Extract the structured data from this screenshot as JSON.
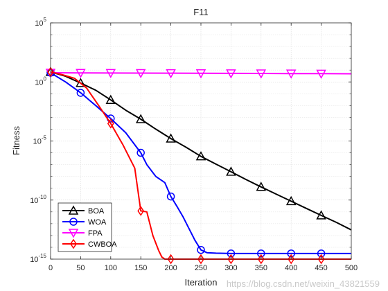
{
  "chart_data": {
    "type": "line",
    "title": "F11",
    "xlabel": "Iteration",
    "ylabel": "Fitness",
    "xlim": [
      0,
      500
    ],
    "ylim": [
      1e-15,
      100000
    ],
    "yscale": "log",
    "x_ticks": [
      "0",
      "50",
      "100",
      "150",
      "200",
      "250",
      "300",
      "350",
      "400",
      "450",
      "500"
    ],
    "y_ticks": [
      {
        "base": "10",
        "exp": "-15"
      },
      {
        "base": "10",
        "exp": "-10"
      },
      {
        "base": "10",
        "exp": "-5"
      },
      {
        "base": "10",
        "exp": "0"
      },
      {
        "base": "10",
        "exp": "5"
      }
    ],
    "grid": true,
    "legend_position": "bottom-left",
    "series": [
      {
        "name": "BOA",
        "color": "#000000",
        "marker": "triangle-up",
        "x": [
          0,
          10,
          25,
          50,
          75,
          100,
          125,
          150,
          175,
          200,
          225,
          250,
          275,
          300,
          325,
          350,
          375,
          400,
          425,
          450,
          475,
          500
        ],
        "y": [
          7,
          5,
          3,
          0.8,
          0.2,
          0.03,
          0.004,
          0.0007,
          0.0001,
          1.6e-05,
          3e-06,
          5e-07,
          1.1e-07,
          2.5e-08,
          5.5e-09,
          1.3e-09,
          3.2e-10,
          8e-11,
          2e-11,
          5e-12,
          1.3e-12,
          3e-13
        ]
      },
      {
        "name": "WOA",
        "color": "#0000ff",
        "marker": "circle",
        "x": [
          0,
          25,
          50,
          75,
          100,
          125,
          150,
          160,
          175,
          190,
          200,
          210,
          220,
          230,
          240,
          250,
          260,
          275,
          300,
          350,
          400,
          450,
          500
        ],
        "y": [
          6,
          1,
          0.12,
          0.01,
          0.0008,
          5e-05,
          1e-06,
          1e-07,
          1e-08,
          3e-09,
          2e-10,
          3e-11,
          4e-12,
          4e-13,
          4e-14,
          6e-15,
          3.5e-15,
          3.2e-15,
          3e-15,
          3e-15,
          3e-15,
          3e-15,
          3e-15
        ]
      },
      {
        "name": "FPA",
        "color": "#ff00ff",
        "marker": "triangle-down",
        "x": [
          0,
          50,
          100,
          150,
          200,
          250,
          300,
          350,
          400,
          450,
          500
        ],
        "y": [
          6,
          5.8,
          5.7,
          5.6,
          5.5,
          5.4,
          5.3,
          5.2,
          5.1,
          5.0,
          4.9
        ]
      },
      {
        "name": "CWBOA",
        "color": "#ff0000",
        "marker": "diamond",
        "x": [
          0,
          20,
          40,
          60,
          80,
          100,
          120,
          140,
          150,
          160,
          170,
          180,
          185,
          190,
          200,
          250,
          300,
          350,
          400,
          450,
          500
        ],
        "y": [
          7,
          4,
          2,
          0.3,
          0.01,
          0.0003,
          5e-06,
          5e-08,
          1.2e-11,
          1e-11,
          1e-13,
          5e-15,
          1.5e-15,
          1e-15,
          1e-15,
          1e-15,
          1e-15,
          1e-15,
          1e-15,
          1e-15,
          1e-15
        ]
      }
    ]
  },
  "watermark": "https://blog.csdn.net/weixin_43821559"
}
